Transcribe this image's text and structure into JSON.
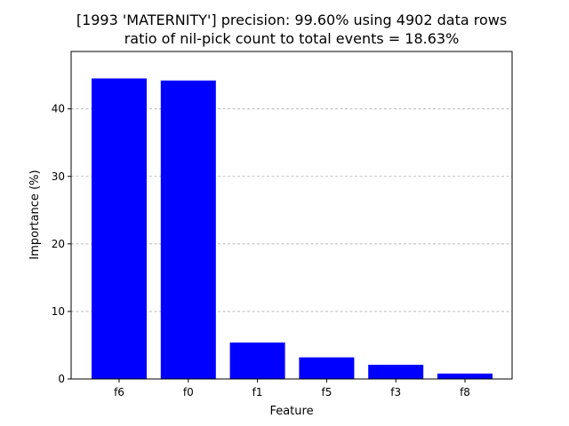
{
  "chart_data": {
    "type": "bar",
    "title_line1": "[1993 'MATERNITY'] precision: 99.60% using 4902 data rows",
    "title_line2": "ratio of nil-pick count to total events = 18.63%",
    "xlabel": "Feature",
    "ylabel": "Importance (%)",
    "categories": [
      "f6",
      "f0",
      "f1",
      "f5",
      "f3",
      "f8"
    ],
    "values": [
      44.5,
      44.2,
      5.4,
      3.2,
      2.1,
      0.8
    ],
    "ylim": [
      0,
      48.5
    ],
    "yticks": [
      0,
      10,
      20,
      30,
      40
    ],
    "grid": "y-dashed",
    "bar_color": "#0000ff"
  }
}
